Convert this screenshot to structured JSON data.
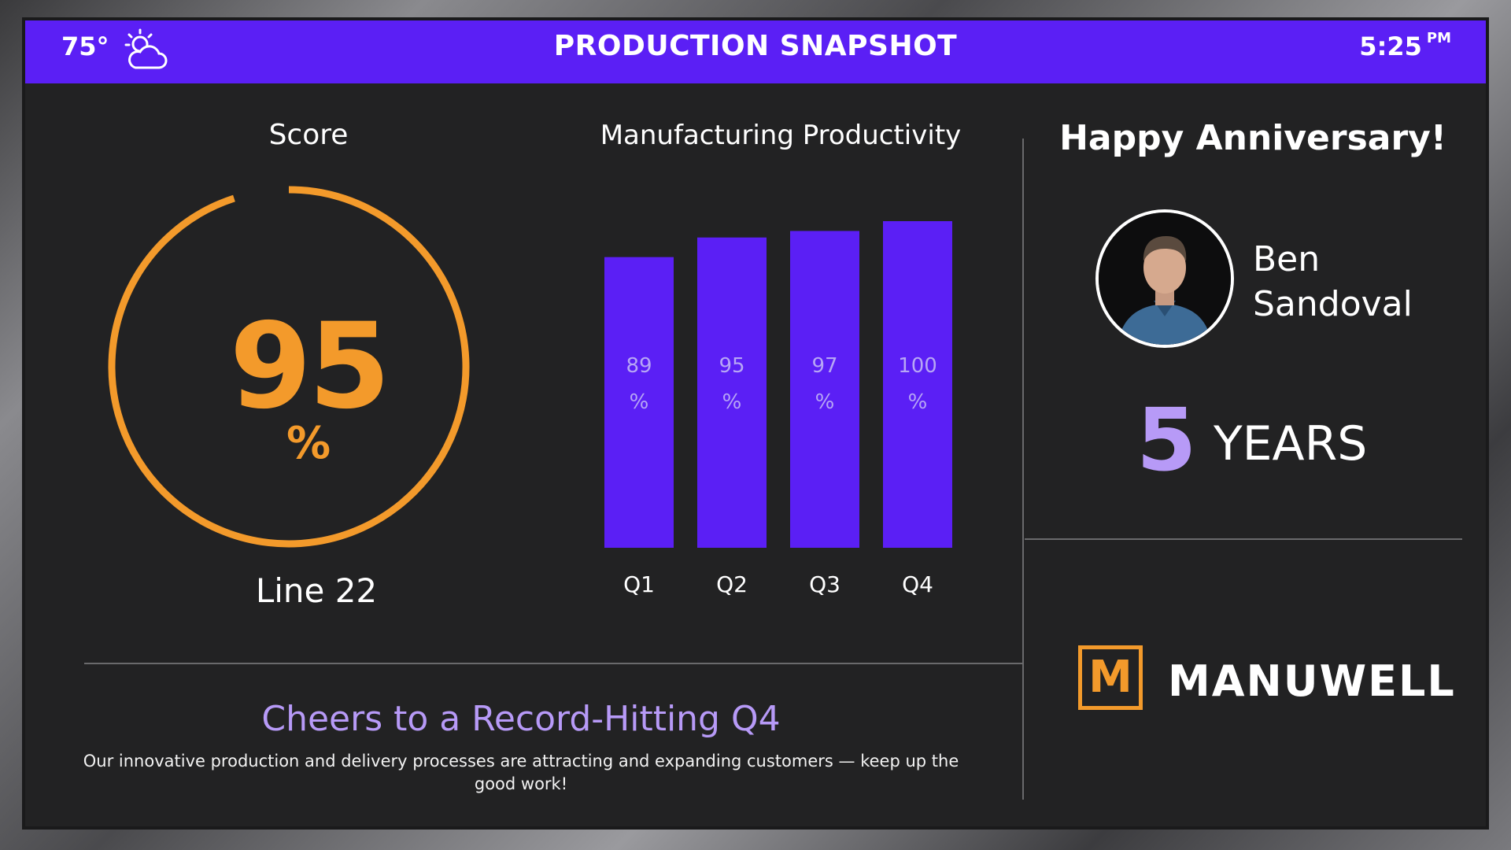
{
  "header": {
    "temperature": "75°",
    "weather_icon": "partly-cloudy-icon",
    "title": "PRODUCTION SNAPSHOT",
    "time": "5:25",
    "ampm": "PM",
    "bar_color": "#5b1ff5"
  },
  "score": {
    "title": "Score",
    "value": "95",
    "unit": "%",
    "percent": 95,
    "line_label": "Line 22",
    "color": "#f39a2b"
  },
  "chart_data": {
    "type": "bar",
    "title": "Manufacturing Productivity",
    "categories": [
      "Q1",
      "Q2",
      "Q3",
      "Q4"
    ],
    "values": [
      89,
      95,
      97,
      100
    ],
    "data_labels": [
      "89",
      "95",
      "97",
      "100"
    ],
    "unit": "%",
    "xlabel": "",
    "ylabel": "",
    "ylim": [
      0,
      100
    ],
    "grid": false,
    "color": "#5b1ff5"
  },
  "anniversary": {
    "title": "Happy Anniversary!",
    "first_name": "Ben",
    "last_name": "Sandoval",
    "years_number": "5",
    "years_label": "YEARS"
  },
  "brand": {
    "logo_letter": "M",
    "name": "MANUWELL"
  },
  "message": {
    "headline": "Cheers to a Record-Hitting Q4",
    "body": "Our innovative production and delivery processes are attracting and expanding customers — keep up the good work!"
  }
}
